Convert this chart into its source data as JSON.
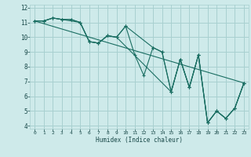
{
  "xlabel": "Humidex (Indice chaleur)",
  "bg_color": "#ceeaea",
  "grid_color": "#a8d0d0",
  "line_color": "#1a6e62",
  "xlim": [
    -0.5,
    23.5
  ],
  "ylim": [
    3.8,
    12.2
  ],
  "xticks": [
    0,
    1,
    2,
    3,
    4,
    5,
    6,
    7,
    8,
    9,
    10,
    11,
    12,
    13,
    14,
    15,
    16,
    17,
    18,
    19,
    20,
    21,
    22,
    23
  ],
  "yticks": [
    4,
    5,
    6,
    7,
    8,
    9,
    10,
    11,
    12
  ],
  "trend_x": [
    0,
    23
  ],
  "trend_y": [
    11.1,
    6.9
  ],
  "line1_x": [
    0,
    1,
    2,
    3,
    4,
    5,
    6,
    7,
    8,
    9,
    10,
    11,
    12,
    13,
    14,
    15,
    16,
    17,
    18,
    19,
    20,
    21,
    22,
    23
  ],
  "line1_y": [
    11.1,
    11.1,
    11.3,
    11.2,
    11.2,
    11.0,
    9.7,
    9.6,
    10.1,
    10.0,
    10.75,
    8.8,
    7.4,
    9.3,
    9.0,
    6.3,
    8.5,
    6.6,
    8.8,
    4.2,
    5.0,
    4.5,
    5.2,
    6.9
  ],
  "line2_x": [
    0,
    1,
    2,
    3,
    5,
    6,
    7,
    8,
    9,
    10,
    13,
    14,
    15,
    16,
    17,
    18,
    19,
    20,
    21,
    22,
    23
  ],
  "line2_y": [
    11.1,
    11.1,
    11.3,
    11.2,
    11.0,
    9.7,
    9.6,
    10.1,
    10.0,
    10.75,
    9.3,
    9.0,
    6.3,
    8.5,
    6.6,
    8.8,
    4.2,
    5.0,
    4.5,
    5.2,
    6.9
  ],
  "line3_x": [
    0,
    1,
    2,
    3,
    4,
    5,
    6,
    7,
    8,
    9,
    15,
    16,
    17,
    18,
    19,
    20,
    21,
    22,
    23
  ],
  "line3_y": [
    11.1,
    11.1,
    11.3,
    11.2,
    11.2,
    11.0,
    9.7,
    9.6,
    10.1,
    10.0,
    6.3,
    8.5,
    6.6,
    8.8,
    4.2,
    5.0,
    4.5,
    5.2,
    6.9
  ]
}
